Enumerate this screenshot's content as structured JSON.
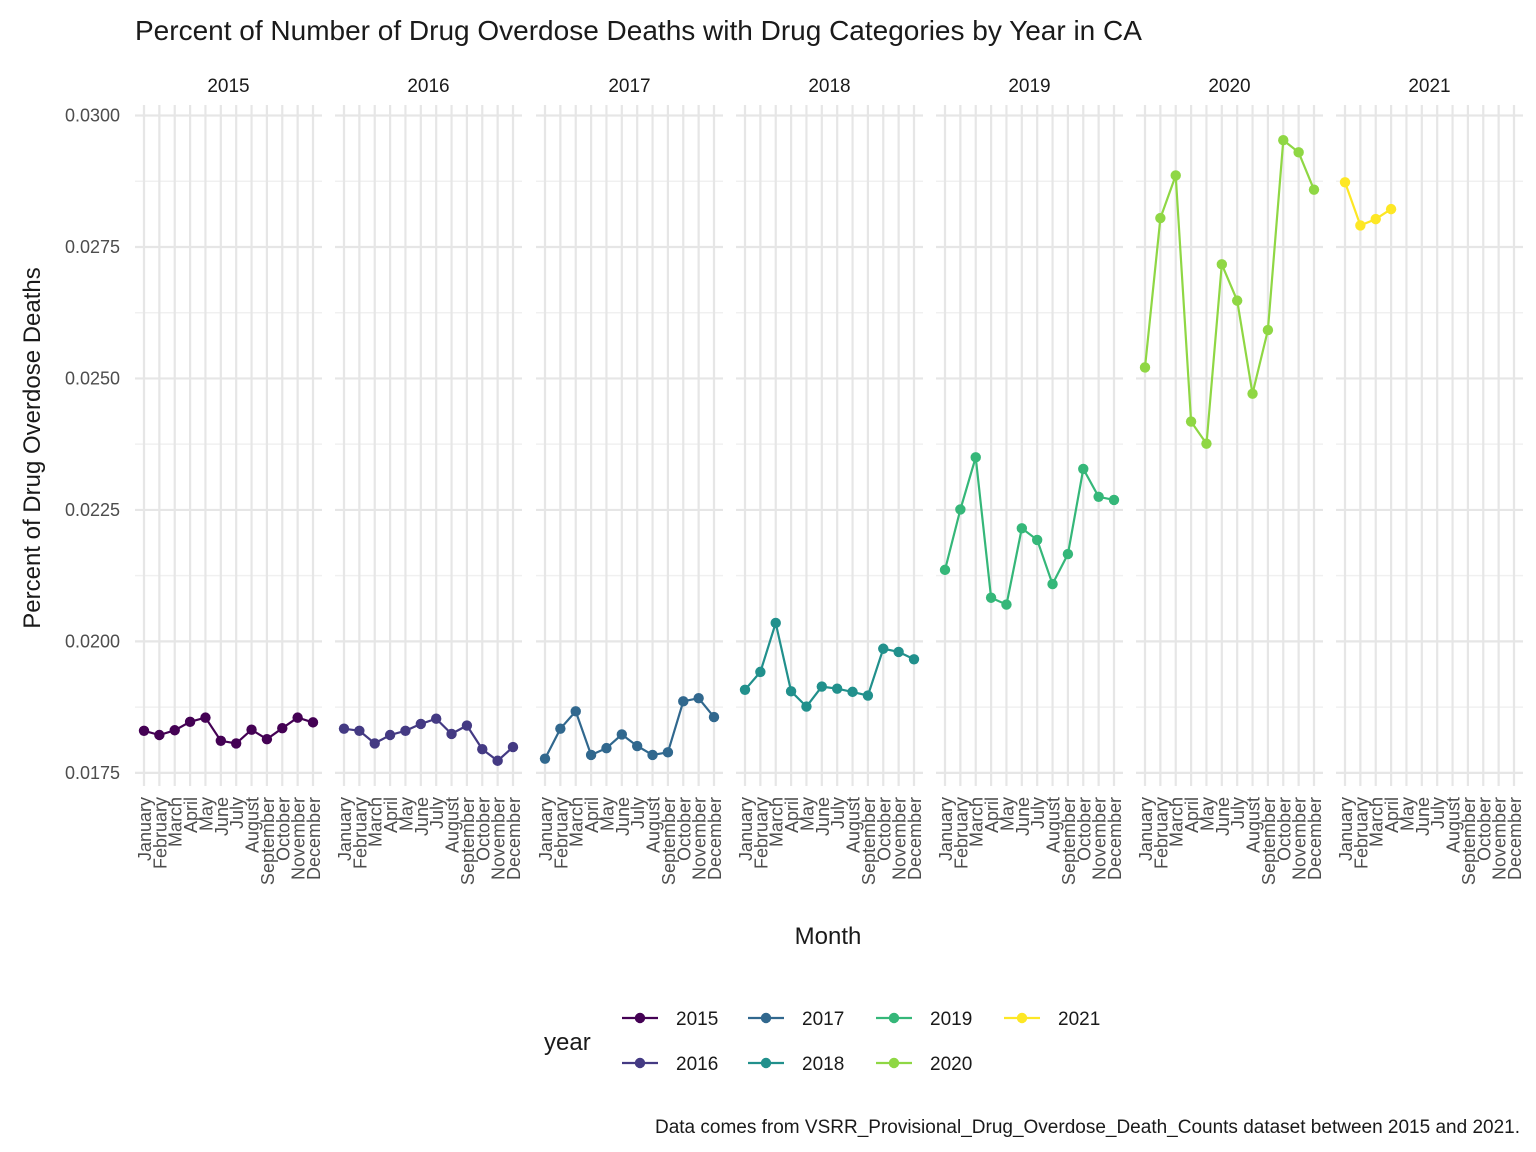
{
  "chart_data": {
    "type": "line",
    "title": "Percent of Number of Drug Overdose Deaths with Drug Categories by Year in CA",
    "xlabel": "Month",
    "ylabel": "Percent of Drug Overdose Deaths",
    "caption": "Data comes from VSRR_Provisional_Drug_Overdose_Death_Counts dataset between 2015 and 2021.",
    "ylim": [
      0.01725,
      0.0302
    ],
    "y_ticks": [
      "0.0175",
      "0.0200",
      "0.0225",
      "0.0250",
      "0.0275",
      "0.0300"
    ],
    "y_tick_values": [
      0.0175,
      0.02,
      0.0225,
      0.025,
      0.0275,
      0.03
    ],
    "months": [
      "January",
      "February",
      "March",
      "April",
      "May",
      "June",
      "July",
      "August",
      "September",
      "October",
      "November",
      "December"
    ],
    "facet_by": "year",
    "grid": true,
    "legend": {
      "title": "year",
      "position": "bottom",
      "entries": [
        "2015",
        "2016",
        "2017",
        "2018",
        "2019",
        "2020",
        "2021"
      ]
    },
    "series": [
      {
        "name": "2015",
        "color": "#440154",
        "values": [
          0.0183,
          0.01822,
          0.01831,
          0.01847,
          0.01855,
          0.01811,
          0.01806,
          0.01832,
          0.01814,
          0.01835,
          0.01855,
          0.01846
        ]
      },
      {
        "name": "2016",
        "color": "#443A83",
        "values": [
          0.01834,
          0.0183,
          0.01806,
          0.01822,
          0.0183,
          0.01843,
          0.01853,
          0.01824,
          0.0184,
          0.01795,
          0.01773,
          0.01799
        ]
      },
      {
        "name": "2017",
        "color": "#31688E",
        "values": [
          0.01777,
          0.01834,
          0.01867,
          0.01784,
          0.01797,
          0.01823,
          0.01801,
          0.01784,
          0.01789,
          0.01886,
          0.01892,
          0.01856
        ]
      },
      {
        "name": "2018",
        "color": "#21908C",
        "values": [
          0.01908,
          0.01942,
          0.02035,
          0.01905,
          0.01876,
          0.01914,
          0.0191,
          0.01904,
          0.01897,
          0.01986,
          0.0198,
          0.01966
        ]
      },
      {
        "name": "2019",
        "color": "#35B779",
        "values": [
          0.02136,
          0.02251,
          0.0235,
          0.02083,
          0.0207,
          0.02215,
          0.02193,
          0.02109,
          0.02166,
          0.02328,
          0.02275,
          0.02269
        ]
      },
      {
        "name": "2020",
        "color": "#8FD744",
        "values": [
          0.02521,
          0.02805,
          0.02886,
          0.02418,
          0.02376,
          0.02717,
          0.02648,
          0.02471,
          0.02592,
          0.02953,
          0.0293,
          0.02859
        ]
      },
      {
        "name": "2021",
        "color": "#FDE725",
        "values": [
          0.02873,
          0.02791,
          0.02803,
          0.02822
        ]
      }
    ]
  }
}
